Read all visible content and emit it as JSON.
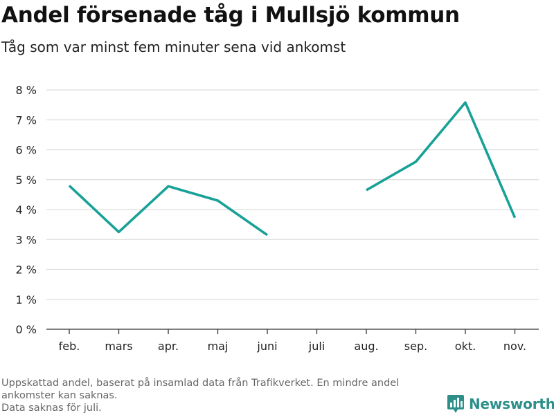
{
  "chart_data": {
    "type": "line",
    "title": "Andel försenade tåg i Mullsjö kommun",
    "subtitle": "Tåg som var minst fem minuter sena vid ankomst",
    "categories": [
      "feb.",
      "mars",
      "apr.",
      "maj",
      "juni",
      "juli",
      "aug.",
      "sep.",
      "okt.",
      "nov."
    ],
    "series": [
      {
        "values": [
          4.8,
          3.25,
          4.78,
          4.3,
          3.15,
          null,
          4.65,
          5.6,
          7.58,
          3.73
        ],
        "color": "#18a197"
      }
    ],
    "yticks": [
      "0 %",
      "1 %",
      "2 %",
      "3 %",
      "4 %",
      "5 %",
      "6 %",
      "7 %",
      "8 %"
    ],
    "ylim": [
      0,
      8
    ],
    "xlabel": "",
    "ylabel": "",
    "grid": true
  },
  "footnote": [
    "Uppskattad andel, baserat på insamlad data från Trafikverket. En mindre andel",
    "ankomster kan saknas.",
    "Data saknas för juli."
  ],
  "brand": {
    "name": "Newsworthy",
    "color": "#2d8f88",
    "icon": "newsworthy-logo-icon"
  }
}
